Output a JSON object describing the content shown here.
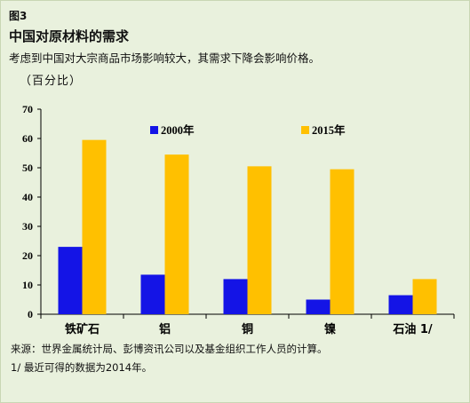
{
  "figure": {
    "label": "图3",
    "title": "中国对原材料的需求",
    "subtitle": "考虑到中国对大宗商品市场影响较大，其需求下降会影响价格。",
    "unit": "（百分比）",
    "source": "来源：世界金属统计局、彭博资讯公司以及基金组织工作人员的计算。",
    "footnote": "1/ 最近可得的数据为2014年。"
  },
  "chart_data": {
    "type": "bar",
    "categories": [
      "铁矿石",
      "铝",
      "铜",
      "镍",
      "石油 1/"
    ],
    "series": [
      {
        "name": "2000年",
        "values": [
          23,
          13.5,
          12,
          5,
          6.5
        ],
        "color": "#1414e6"
      },
      {
        "name": "2015年",
        "values": [
          59.5,
          54.5,
          50.5,
          49.5,
          12
        ],
        "color": "#ffc000"
      }
    ],
    "yticks": [
      "0",
      "10",
      "20",
      "30",
      "40",
      "50",
      "60",
      "70"
    ],
    "ylim": [
      0,
      70
    ],
    "grid": false,
    "legend_position": "top"
  }
}
